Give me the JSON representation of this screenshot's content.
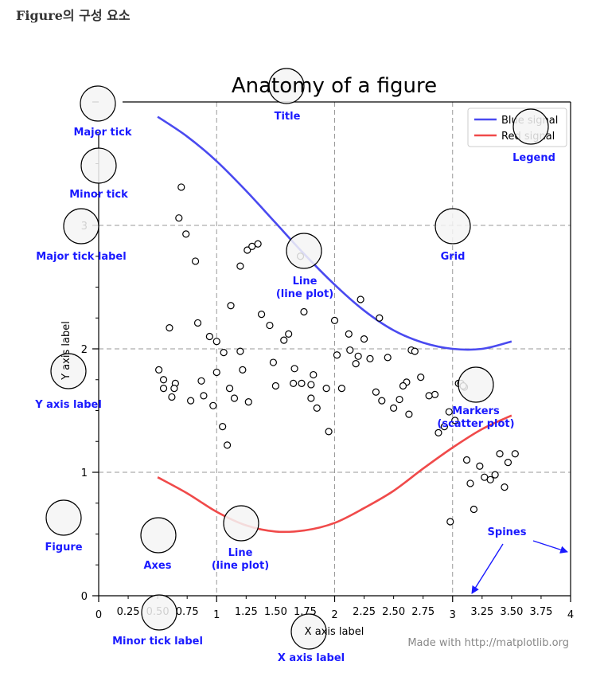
{
  "page": {
    "heading": "Figure의 구성 요소"
  },
  "chart_data": {
    "type": "line",
    "title": "Anatomy of a figure",
    "xlabel": "X axis label",
    "ylabel": "Y axis label",
    "xlim": [
      0,
      4
    ],
    "ylim": [
      0,
      4
    ],
    "x_major_ticks": [
      0,
      1,
      2,
      3,
      4
    ],
    "x_minor_ticks": [
      0.25,
      0.5,
      0.75,
      1.25,
      1.5,
      1.75,
      2.25,
      2.5,
      2.75,
      3.25,
      3.5,
      3.75
    ],
    "x_minor_labels": [
      "0.25",
      "0.50",
      "0.75",
      "1.25",
      "1.50",
      "1.75",
      "2.25",
      "2.50",
      "2.75",
      "3.25",
      "3.50",
      "3.75"
    ],
    "y_major_ticks": [
      0,
      1,
      2,
      3
    ],
    "grid": true,
    "legend": {
      "placement": "top-right",
      "entries": [
        "Blue signal",
        "Red signal"
      ]
    },
    "series": [
      {
        "name": "Blue signal",
        "color": "#4a4af0",
        "x": [
          0.5,
          0.75,
          1.0,
          1.25,
          1.5,
          1.75,
          2.0,
          2.25,
          2.5,
          2.75,
          3.0,
          3.25,
          3.5
        ],
        "y": [
          3.88,
          3.72,
          3.52,
          3.28,
          3.02,
          2.76,
          2.52,
          2.31,
          2.15,
          2.05,
          2.0,
          2.0,
          2.06
        ]
      },
      {
        "name": "Red signal",
        "color": "#f04a4a",
        "x": [
          0.5,
          0.75,
          1.0,
          1.25,
          1.5,
          1.75,
          2.0,
          2.25,
          2.5,
          2.75,
          3.0,
          3.25,
          3.5
        ],
        "y": [
          0.96,
          0.83,
          0.68,
          0.57,
          0.52,
          0.53,
          0.59,
          0.71,
          0.85,
          1.03,
          1.2,
          1.35,
          1.46
        ]
      }
    ],
    "scatter": {
      "name": "Markers",
      "x": [
        0.7,
        0.68,
        0.74,
        0.82,
        0.84,
        0.94,
        0.6,
        0.51,
        0.55,
        0.65,
        0.78,
        0.64,
        0.55,
        0.89,
        0.97,
        1.05,
        1.09,
        1.11,
        1.0,
        1.12,
        1.2,
        1.26,
        1.3,
        1.35,
        1.22,
        1.38,
        1.45,
        1.48,
        1.57,
        1.61,
        1.66,
        1.71,
        1.74,
        1.72,
        1.85,
        1.95,
        2.02,
        2.12,
        2.25,
        2.2,
        2.22,
        2.38,
        2.45,
        2.55,
        2.63,
        2.73,
        2.61,
        2.88,
        2.93,
        2.97,
        3.02,
        3.12,
        3.27,
        3.36,
        3.4,
        3.47,
        3.44,
        3.53,
        3.32,
        3.23,
        3.15,
        3.18,
        2.98,
        3.05,
        1.15,
        1.2,
        1.06,
        1.27,
        1.5,
        1.8,
        1.82,
        1.93,
        2.06,
        2.0,
        2.13,
        2.18,
        2.3,
        2.35,
        2.4,
        2.5,
        2.58,
        2.65,
        2.68,
        2.85,
        2.8,
        1.8,
        1.65,
        1.0,
        0.87,
        0.62,
        3.1,
        3.07,
        3.09
      ],
      "y": [
        3.31,
        3.06,
        2.93,
        2.71,
        2.21,
        2.1,
        2.17,
        1.83,
        1.75,
        1.72,
        1.58,
        1.68,
        1.68,
        1.62,
        1.54,
        1.37,
        1.22,
        1.68,
        2.06,
        2.35,
        2.67,
        2.8,
        2.83,
        2.85,
        1.83,
        2.28,
        2.19,
        1.89,
        2.07,
        2.12,
        1.84,
        2.75,
        2.3,
        1.72,
        1.52,
        1.33,
        1.95,
        2.12,
        2.08,
        1.94,
        2.4,
        2.25,
        1.93,
        1.59,
        1.47,
        1.77,
        1.73,
        1.32,
        1.37,
        1.49,
        1.42,
        1.1,
        0.96,
        0.98,
        1.15,
        1.08,
        0.88,
        1.15,
        0.94,
        1.05,
        0.91,
        0.7,
        0.6,
        1.72,
        1.6,
        1.98,
        1.97,
        1.57,
        1.7,
        1.6,
        1.79,
        1.68,
        1.68,
        2.23,
        1.99,
        1.88,
        1.92,
        1.65,
        1.58,
        1.52,
        1.7,
        1.99,
        1.98,
        1.63,
        1.62,
        1.71,
        1.72,
        1.81,
        1.74,
        1.61,
        1.69,
        1.72,
        1.7
      ],
      "color": "#000000"
    },
    "annotations": [
      {
        "text": "Title"
      },
      {
        "text": "Major tick"
      },
      {
        "text": "Minor tick"
      },
      {
        "text": "Major tick label"
      },
      {
        "text": "Grid"
      },
      {
        "text": "Legend"
      },
      {
        "text": "Line",
        "text2": "(line plot)"
      },
      {
        "text": "Y axis label"
      },
      {
        "text": "Markers",
        "text2": "(scatter plot)"
      },
      {
        "text": "Figure"
      },
      {
        "text": "Axes"
      },
      {
        "text": "Line",
        "text2": "(line plot)"
      },
      {
        "text": "Spines"
      },
      {
        "text": "Minor tick label"
      },
      {
        "text": "X axis label"
      }
    ],
    "credit": "Made with http://matplotlib.org"
  }
}
